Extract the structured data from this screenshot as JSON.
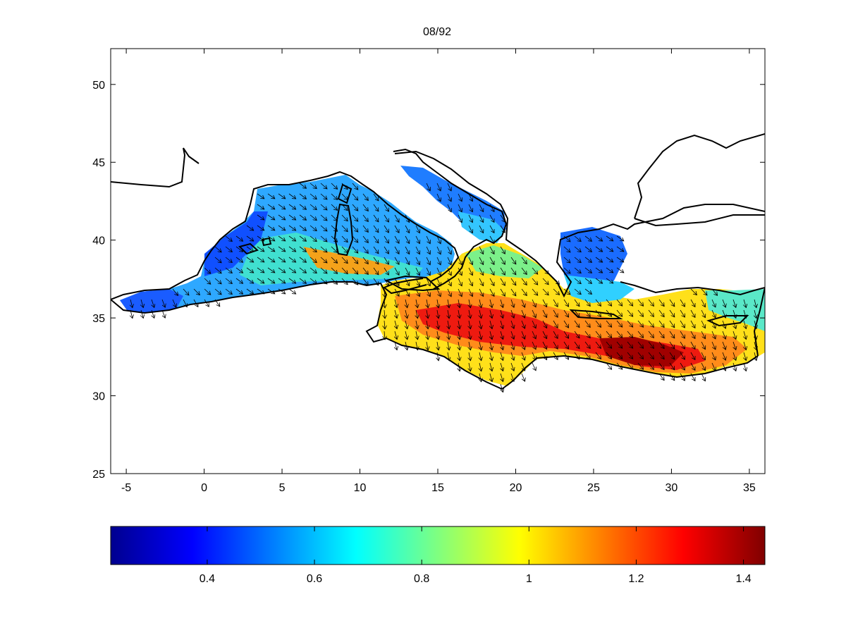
{
  "figure": {
    "title": "08/92"
  },
  "map": {
    "x_ticks": [
      "-5",
      "0",
      "5",
      "10",
      "15",
      "20",
      "25",
      "30",
      "35"
    ],
    "y_ticks": [
      "50",
      "45",
      "40",
      "35",
      "30",
      "25"
    ],
    "lon_range": [
      -6,
      36
    ],
    "lat_range": [
      25,
      52.3
    ]
  },
  "colorbar": {
    "ticks": [
      "0.4",
      "0.6",
      "0.8",
      "1",
      "1.2",
      "1.4"
    ],
    "range": [
      0.22,
      1.44
    ],
    "colormap": "jet"
  },
  "colors": {
    "jet_low": "#00008f",
    "jet_mid_blue": "#0000ff",
    "jet_cyan": "#00ffff",
    "jet_yellow": "#ffff00",
    "jet_red": "#ff0000",
    "jet_high": "#800000",
    "axis": "#000000",
    "background": "#ffffff"
  }
}
